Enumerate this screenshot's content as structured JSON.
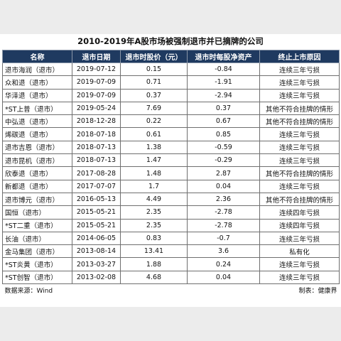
{
  "title": "2010-2019年A股市场被强制退市并已摘牌的公司",
  "columns": [
    "名称",
    "退市日期",
    "退市时股价（元）",
    "退市时每股净资产",
    "终止上市原因"
  ],
  "rows": [
    [
      "退市海润（退市）",
      "2019-07-12",
      "0.15",
      "-0.84",
      "连续三年亏损"
    ],
    [
      "众和退（退市）",
      "2019-07-09",
      "0.71",
      "-1.91",
      "连续三年亏损"
    ],
    [
      "华泽退（退市）",
      "2019-07-09",
      "0.37",
      "-2.94",
      "连续三年亏损"
    ],
    [
      "*ST上普（退市）",
      "2019-05-24",
      "7.69",
      "0.37",
      "其他不符合挂牌的情形"
    ],
    [
      "中弘退（退市）",
      "2018-12-28",
      "0.22",
      "0.67",
      "其他不符合挂牌的情形"
    ],
    [
      "烯碳退（退市）",
      "2018-07-18",
      "0.61",
      "0.85",
      "连续三年亏损"
    ],
    [
      "退市吉恩（退市）",
      "2018-07-13",
      "1.38",
      "-0.59",
      "连续三年亏损"
    ],
    [
      "退市昆机（退市）",
      "2018-07-13",
      "1.47",
      "-0.29",
      "连续三年亏损"
    ],
    [
      "欣泰退（退市）",
      "2017-08-28",
      "1.48",
      "2.87",
      "其他不符合挂牌的情形"
    ],
    [
      "新都退（退市）",
      "2017-07-07",
      "1.7",
      "0.04",
      "连续三年亏损"
    ],
    [
      "退市博元（退市）",
      "2016-05-13",
      "4.49",
      "2.36",
      "其他不符合挂牌的情形"
    ],
    [
      "国恒（退市）",
      "2015-05-21",
      "2.35",
      "-2.78",
      "连续四年亏损"
    ],
    [
      "*ST二重（退市）",
      "2015-05-21",
      "2.35",
      "-2.78",
      "连续四年亏损"
    ],
    [
      "长油（退市）",
      "2014-06-05",
      "0.83",
      "-0.7",
      "连续三年亏损"
    ],
    [
      "金马集团（退市）",
      "2013-08-14",
      "13.41",
      "3.6",
      "私有化"
    ],
    [
      "*ST炎黄（退市）",
      "2013-03-27",
      "1.88",
      "0.24",
      "连续三年亏损"
    ],
    [
      "*ST创智（退市）",
      "2013-02-08",
      "4.68",
      "0.04",
      "连续三年亏损"
    ]
  ],
  "footer": {
    "source": "数据来源：Wind",
    "maker": "制表：健康界"
  },
  "colors": {
    "header_bg": "#1f3a60",
    "header_text": "#ffffff",
    "page_bg": "#ececec"
  }
}
